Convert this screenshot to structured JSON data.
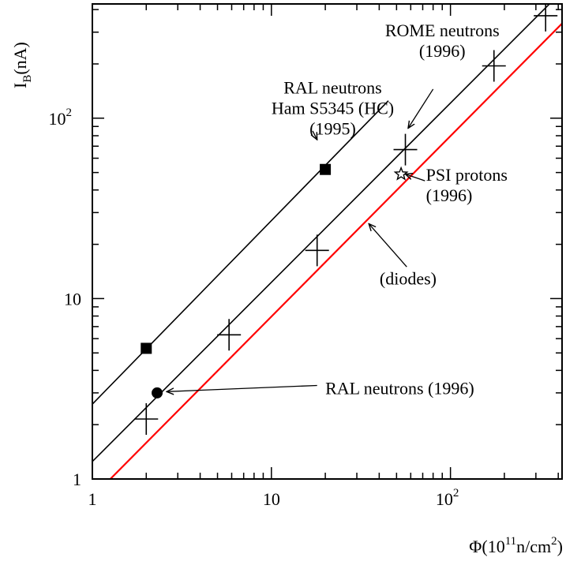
{
  "chart_data": {
    "type": "scatter",
    "x_scale": "log",
    "y_scale": "log",
    "xlim": [
      1,
      420
    ],
    "ylim": [
      1,
      430
    ],
    "grid": false,
    "xlabel": {
      "base": "Φ(10",
      "sup1": "11",
      "mid": "n/cm",
      "sup2": "2",
      "end": ")"
    },
    "ylabel": {
      "main": "I",
      "sub": "B",
      "rest": "(nA)"
    },
    "xticks": [
      {
        "value": 1,
        "label": "1"
      },
      {
        "value": 10,
        "label": "10"
      },
      {
        "value": 100,
        "label": "10",
        "sup": "2"
      }
    ],
    "yticks": [
      {
        "value": 1,
        "label": "1"
      },
      {
        "value": 10,
        "label": "10"
      },
      {
        "value": 100,
        "label": "10",
        "sup": "2"
      }
    ],
    "series": [
      {
        "marker": "square",
        "color": "#000000",
        "points": [
          {
            "x": 2.0,
            "y": 5.3
          },
          {
            "x": 20.0,
            "y": 52.0
          }
        ],
        "fit": {
          "x": [
            1,
            45
          ],
          "y": [
            2.6,
            125
          ]
        }
      },
      {
        "marker": "cross",
        "color": "#000000",
        "points": [
          {
            "x": 2.0,
            "y": 2.15
          },
          {
            "x": 5.8,
            "y": 6.3
          },
          {
            "x": 18.0,
            "y": 18.5
          },
          {
            "x": 56.0,
            "y": 67.0
          },
          {
            "x": 175.0,
            "y": 195.0
          },
          {
            "x": 340.0,
            "y": 370.0
          }
        ],
        "fit": {
          "x": [
            1,
            420
          ],
          "y": [
            1.25,
            505
          ]
        }
      },
      {
        "marker": "circle",
        "color": "#000000",
        "points": [
          {
            "x": 2.3,
            "y": 3.0
          }
        ]
      },
      {
        "marker": "star",
        "color": "#000000",
        "points": [
          {
            "x": 53.0,
            "y": 49.0
          }
        ]
      },
      {
        "marker": "none",
        "color": "#ff0000",
        "fit": {
          "x": [
            1.26,
            420
          ],
          "y": [
            1,
            335
          ]
        }
      }
    ],
    "annotations": [
      {
        "lines": [
          "RAL neutrons",
          "Ham S5345 (HC)",
          "(1995)"
        ],
        "align": "middle",
        "anchor": [
          22,
          137
        ],
        "line_gap": 0.34,
        "arrow": {
          "from": [
            17,
            85
          ],
          "to": [
            18,
            76
          ]
        }
      },
      {
        "lines": [
          "ROME neutrons",
          "(1996)"
        ],
        "align": "middle",
        "anchor": [
          90,
          284
        ],
        "line_gap": 0.3,
        "arrow": {
          "from": [
            80,
            145
          ],
          "to": [
            58,
            88
          ]
        }
      },
      {
        "lines": [
          "PSI protons",
          "(1996)"
        ],
        "align": "start",
        "anchor": [
          73,
          45
        ],
        "line_gap": 0.3,
        "arrow": {
          "from": [
            72,
            45
          ],
          "to": [
            56,
            49
          ]
        }
      },
      {
        "lines": [
          "(diodes)"
        ],
        "align": "middle",
        "anchor": [
          58,
          12
        ],
        "line_gap": 0.3,
        "arrow": {
          "from": [
            57,
            15
          ],
          "to": [
            35,
            26
          ]
        }
      },
      {
        "lines": [
          "RAL neutrons (1996)"
        ],
        "align": "start",
        "anchor": [
          20,
          2.95
        ],
        "line_gap": 0.3,
        "arrow": {
          "from": [
            18,
            3.3
          ],
          "to": [
            2.6,
            3.05
          ]
        }
      }
    ]
  }
}
